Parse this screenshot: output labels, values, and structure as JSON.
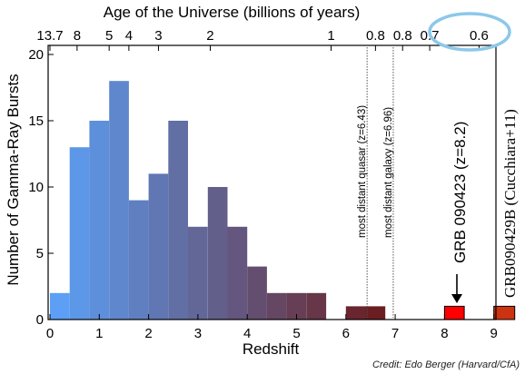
{
  "chart_data": {
    "type": "bar",
    "title": "Age of the Universe  (billions of years)",
    "xlabel": "Redshift",
    "ylabel": "Number of Gamma-Ray Bursts",
    "xlim": [
      0,
      9.2
    ],
    "ylim": [
      0,
      21
    ],
    "bin_width": 0.4,
    "bins": [
      {
        "x0": 0.0,
        "count": 2
      },
      {
        "x0": 0.4,
        "count": 13
      },
      {
        "x0": 0.8,
        "count": 15
      },
      {
        "x0": 1.2,
        "count": 18
      },
      {
        "x0": 1.6,
        "count": 9
      },
      {
        "x0": 2.0,
        "count": 11
      },
      {
        "x0": 2.4,
        "count": 15
      },
      {
        "x0": 2.8,
        "count": 7
      },
      {
        "x0": 3.2,
        "count": 10
      },
      {
        "x0": 3.6,
        "count": 7
      },
      {
        "x0": 4.0,
        "count": 4
      },
      {
        "x0": 4.4,
        "count": 2
      },
      {
        "x0": 4.8,
        "count": 2
      },
      {
        "x0": 5.2,
        "count": 2
      },
      {
        "x0": 6.0,
        "count": 1
      },
      {
        "x0": 6.4,
        "count": 1
      },
      {
        "x0": 8.0,
        "count": 1,
        "highlight": true
      },
      {
        "x0": 9.0,
        "count": 1,
        "highlight": true,
        "partial": true
      }
    ],
    "x_ticks": [
      "0",
      "1",
      "2",
      "3",
      "4",
      "5",
      "6",
      "7",
      "8",
      "9"
    ],
    "y_ticks": [
      "0",
      "5",
      "10",
      "15",
      "20"
    ],
    "top_axis_ticks": [
      {
        "label": "13.7",
        "z": 0
      },
      {
        "label": "8",
        "z": 0.55
      },
      {
        "label": "5",
        "z": 1.2
      },
      {
        "label": "4",
        "z": 1.6
      },
      {
        "label": "3",
        "z": 2.2
      },
      {
        "label": "2",
        "z": 3.25
      },
      {
        "label": "1",
        "z": 5.7
      },
      {
        "label": "0.8",
        "z": 6.6
      },
      {
        "label": "0.8",
        "z": 7.15
      },
      {
        "label": "0.7",
        "z": 7.7
      },
      {
        "label": "0.6",
        "z": 8.7
      }
    ],
    "reference_lines": [
      {
        "z": 6.43,
        "label": "most distant quasar (z=6.43)"
      },
      {
        "z": 6.96,
        "label": "most distant galaxy (z=6.96)"
      }
    ],
    "annotations": {
      "grb": "GRB 090423 (z=8.2)",
      "grb_side": "GRB090429B (Cucchiara+11)"
    },
    "credit": "Credit:  Edo Berger (Harvard/CfA)",
    "colors": {
      "low_z": "#5c9ff5",
      "high_z": "#6a1a1a",
      "highlight_red": "#ff0000",
      "highlight_dark_red": "#cc3311",
      "circle": "#8cc8ea"
    }
  }
}
